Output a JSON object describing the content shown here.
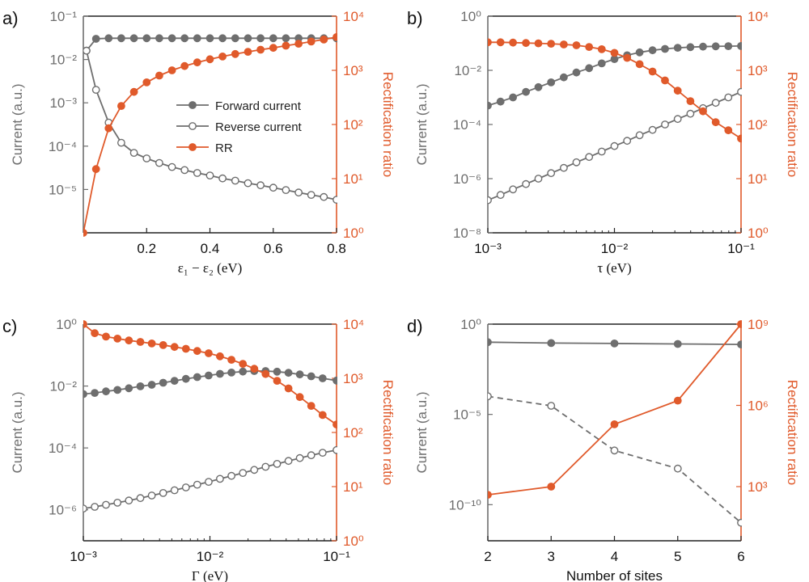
{
  "colors": {
    "gray": "#6e6e6e",
    "orange": "#e05a2b",
    "axis": "#333333"
  },
  "chart_data": [
    {
      "panel": "a)",
      "type": "line",
      "xlabel": "ε₁ − ε₂ (eV)",
      "ylabel_left": "Current (a.u.)",
      "ylabel_right": "Rectification ratio",
      "xlim": [
        0.0,
        0.8
      ],
      "x_scale": "linear",
      "ylim_left_log10": [
        -6,
        -1
      ],
      "ylim_right_log10": [
        0,
        4
      ],
      "xticks": [
        {
          "v": 0.2,
          "label": "0.2"
        },
        {
          "v": 0.4,
          "label": "0.4"
        },
        {
          "v": 0.6,
          "label": "0.6"
        },
        {
          "v": 0.8,
          "label": "0.8"
        }
      ],
      "yticks_left": [
        {
          "e": -5,
          "label": "10⁻⁵"
        },
        {
          "e": -4,
          "label": "10⁻⁴"
        },
        {
          "e": -3,
          "label": "10⁻³"
        },
        {
          "e": -2,
          "label": "10⁻²"
        },
        {
          "e": -1,
          "label": "10⁻¹"
        }
      ],
      "yticks_right": [
        {
          "e": 0,
          "label": "10⁰"
        },
        {
          "e": 1,
          "label": "10¹"
        },
        {
          "e": 2,
          "label": "10²"
        },
        {
          "e": 3,
          "label": "10³"
        },
        {
          "e": 4,
          "label": "10⁴"
        }
      ],
      "legend": {
        "position": "center-right",
        "entries": [
          {
            "label": "Forward current",
            "style": "filled",
            "color": "gray"
          },
          {
            "label": "Reverse current",
            "style": "open",
            "color": "gray"
          },
          {
            "label": "RR",
            "style": "filled",
            "color": "orange"
          }
        ]
      },
      "series": [
        {
          "name": "Forward current",
          "axis": "left",
          "marker": "filled",
          "color": "gray",
          "line": "solid",
          "x": [
            0.01,
            0.04,
            0.08,
            0.12,
            0.16,
            0.2,
            0.24,
            0.28,
            0.32,
            0.36,
            0.4,
            0.44,
            0.48,
            0.52,
            0.56,
            0.6,
            0.64,
            0.68,
            0.72,
            0.76,
            0.8
          ],
          "y": [
            0.016,
            0.03,
            0.031,
            0.031,
            0.031,
            0.031,
            0.031,
            0.031,
            0.031,
            0.031,
            0.031,
            0.031,
            0.031,
            0.031,
            0.031,
            0.031,
            0.031,
            0.031,
            0.031,
            0.031,
            0.031
          ]
        },
        {
          "name": "Reverse current",
          "axis": "left",
          "marker": "open",
          "color": "gray",
          "line": "solid",
          "x": [
            0.01,
            0.04,
            0.08,
            0.12,
            0.16,
            0.2,
            0.24,
            0.28,
            0.32,
            0.36,
            0.4,
            0.44,
            0.48,
            0.52,
            0.56,
            0.6,
            0.64,
            0.68,
            0.72,
            0.76,
            0.8
          ],
          "y": [
            0.016,
            0.002,
            0.00035,
            0.00012,
            7e-05,
            5.2e-05,
            4.1e-05,
            3.3e-05,
            2.8e-05,
            2.4e-05,
            2.1e-05,
            1.8e-05,
            1.6e-05,
            1.4e-05,
            1.25e-05,
            1.1e-05,
            9.7e-06,
            8.5e-06,
            7.5e-06,
            6.7e-06,
            5.8e-06
          ]
        },
        {
          "name": "RR",
          "axis": "right",
          "marker": "filled",
          "color": "orange",
          "line": "solid",
          "x": [
            0.0,
            0.04,
            0.08,
            0.12,
            0.16,
            0.2,
            0.24,
            0.28,
            0.32,
            0.36,
            0.4,
            0.44,
            0.48,
            0.52,
            0.56,
            0.6,
            0.64,
            0.68,
            0.72,
            0.76,
            0.8
          ],
          "y": [
            1,
            15,
            85,
            220,
            400,
            600,
            800,
            1000,
            1200,
            1400,
            1600,
            1800,
            2000,
            2200,
            2400,
            2600,
            2850,
            3100,
            3400,
            3700,
            4100
          ]
        }
      ]
    },
    {
      "panel": "b)",
      "type": "line",
      "xlabel": "τ (eV)",
      "ylabel_left": "Current (a.u.)",
      "ylabel_right": "Rectification ratio",
      "x_scale": "log",
      "xlim_log10": [
        -3,
        -1
      ],
      "ylim_left_log10": [
        -8,
        0
      ],
      "ylim_right_log10": [
        0,
        4
      ],
      "xticks": [
        {
          "e": -3,
          "label": "10⁻³"
        },
        {
          "e": -2,
          "label": "10⁻²"
        },
        {
          "e": -1,
          "label": "10⁻¹"
        }
      ],
      "yticks_left": [
        {
          "e": -8,
          "label": "10⁻⁸"
        },
        {
          "e": -6,
          "label": "10⁻⁶"
        },
        {
          "e": -4,
          "label": "10⁻⁴"
        },
        {
          "e": -2,
          "label": "10⁻²"
        },
        {
          "e": 0,
          "label": "10⁰"
        }
      ],
      "yticks_right": [
        {
          "e": 0,
          "label": "10⁰"
        },
        {
          "e": 1,
          "label": "10¹"
        },
        {
          "e": 2,
          "label": "10²"
        },
        {
          "e": 3,
          "label": "10³"
        },
        {
          "e": 4,
          "label": "10⁴"
        }
      ],
      "series": [
        {
          "name": "Forward current",
          "axis": "left",
          "marker": "filled",
          "color": "gray",
          "line": "solid",
          "x": [
            0.001,
            0.00126,
            0.00158,
            0.002,
            0.00251,
            0.00316,
            0.00398,
            0.00501,
            0.00631,
            0.00794,
            0.01,
            0.0126,
            0.0158,
            0.02,
            0.0251,
            0.0316,
            0.0398,
            0.0501,
            0.0631,
            0.0794,
            0.1
          ],
          "y": [
            0.0005,
            0.0007,
            0.001,
            0.0016,
            0.0024,
            0.0036,
            0.0055,
            0.0083,
            0.012,
            0.018,
            0.026,
            0.036,
            0.046,
            0.055,
            0.062,
            0.068,
            0.072,
            0.075,
            0.077,
            0.078,
            0.079
          ]
        },
        {
          "name": "Reverse current",
          "axis": "left",
          "marker": "open",
          "color": "gray",
          "line": "solid",
          "x": [
            0.001,
            0.00126,
            0.00158,
            0.002,
            0.00251,
            0.00316,
            0.00398,
            0.00501,
            0.00631,
            0.00794,
            0.01,
            0.0126,
            0.0158,
            0.02,
            0.0251,
            0.0316,
            0.0398,
            0.0501,
            0.0631,
            0.0794,
            0.1
          ],
          "y": [
            1.6e-07,
            2.5e-07,
            4e-07,
            6.3e-07,
            1e-06,
            1.6e-06,
            2.5e-06,
            4e-06,
            6.3e-06,
            1e-05,
            1.6e-05,
            2.5e-05,
            4e-05,
            6.3e-05,
            0.0001,
            0.00016,
            0.00025,
            0.0004,
            0.00063,
            0.001,
            0.0016
          ]
        },
        {
          "name": "RR",
          "axis": "right",
          "marker": "filled",
          "color": "orange",
          "line": "solid",
          "x": [
            0.001,
            0.00126,
            0.00158,
            0.002,
            0.00251,
            0.00316,
            0.00398,
            0.00501,
            0.00631,
            0.00794,
            0.01,
            0.0126,
            0.0158,
            0.02,
            0.0251,
            0.0316,
            0.0398,
            0.0501,
            0.0631,
            0.0794,
            0.1
          ],
          "y": [
            3300,
            3300,
            3250,
            3200,
            3150,
            3100,
            3000,
            2900,
            2700,
            2450,
            2100,
            1700,
            1300,
            950,
            650,
            420,
            270,
            175,
            110,
            78,
            55
          ]
        }
      ]
    },
    {
      "panel": "c)",
      "type": "line",
      "xlabel": "Γ (eV)",
      "ylabel_left": "Current (a.u.)",
      "ylabel_right": "Rectification ratio",
      "x_scale": "log",
      "xlim_log10": [
        -3,
        -1
      ],
      "ylim_left_log10": [
        -7,
        0
      ],
      "ylim_right_log10": [
        0,
        4
      ],
      "xticks": [
        {
          "e": -3,
          "label": "10⁻³"
        },
        {
          "e": -2,
          "label": "10⁻²"
        },
        {
          "e": -1,
          "label": "10⁻¹"
        }
      ],
      "yticks_left": [
        {
          "e": -6,
          "label": "10⁻⁶"
        },
        {
          "e": -4,
          "label": "10⁻⁴"
        },
        {
          "e": -2,
          "label": "10⁻²"
        },
        {
          "e": 0,
          "label": "10⁰"
        }
      ],
      "yticks_right": [
        {
          "e": 0,
          "label": "10⁰"
        },
        {
          "e": 1,
          "label": "10¹"
        },
        {
          "e": 2,
          "label": "10²"
        },
        {
          "e": 3,
          "label": "10³"
        },
        {
          "e": 4,
          "label": "10⁴"
        }
      ],
      "series": [
        {
          "name": "Forward current",
          "axis": "left",
          "marker": "filled",
          "color": "gray",
          "line": "solid",
          "x": [
            0.001,
            0.00123,
            0.00151,
            0.00186,
            0.00229,
            0.00282,
            0.00347,
            0.00427,
            0.00525,
            0.00646,
            0.00794,
            0.00977,
            0.012,
            0.0148,
            0.0182,
            0.0224,
            0.0275,
            0.0339,
            0.0417,
            0.0513,
            0.0631,
            0.0776,
            0.1
          ],
          "y": [
            0.0055,
            0.006,
            0.0067,
            0.0075,
            0.0085,
            0.0098,
            0.011,
            0.0128,
            0.0148,
            0.017,
            0.0195,
            0.022,
            0.0248,
            0.0272,
            0.0293,
            0.0305,
            0.0305,
            0.0292,
            0.0268,
            0.0238,
            0.0207,
            0.0178,
            0.015
          ]
        },
        {
          "name": "Reverse current",
          "axis": "left",
          "marker": "open",
          "color": "gray",
          "line": "solid",
          "x": [
            0.001,
            0.00123,
            0.00151,
            0.00186,
            0.00229,
            0.00282,
            0.00347,
            0.00427,
            0.00525,
            0.00646,
            0.00794,
            0.00977,
            0.012,
            0.0148,
            0.0182,
            0.0224,
            0.0275,
            0.0339,
            0.0417,
            0.0513,
            0.0631,
            0.0776,
            0.1
          ],
          "y": [
            1.1e-06,
            1.25e-06,
            1.45e-06,
            1.7e-06,
            2e-06,
            2.4e-06,
            2.9e-06,
            3.5e-06,
            4.3e-06,
            5.3e-06,
            6.5e-06,
            8e-06,
            1e-05,
            1.25e-05,
            1.55e-05,
            1.95e-05,
            2.45e-05,
            3.05e-05,
            3.8e-05,
            4.7e-05,
            5.8e-05,
            7e-05,
            8.5e-05
          ]
        },
        {
          "name": "RR",
          "axis": "right",
          "marker": "filled",
          "color": "orange",
          "line": "solid",
          "x": [
            0.001,
            0.00123,
            0.00151,
            0.00186,
            0.00229,
            0.00282,
            0.00347,
            0.00427,
            0.00525,
            0.00646,
            0.00794,
            0.00977,
            0.012,
            0.0148,
            0.0182,
            0.0224,
            0.0275,
            0.0339,
            0.0417,
            0.0513,
            0.0631,
            0.0776,
            0.1
          ],
          "y": [
            10000,
            6800,
            5900,
            5400,
            5000,
            4700,
            4400,
            4100,
            3800,
            3500,
            3200,
            2900,
            2550,
            2200,
            1850,
            1500,
            1200,
            900,
            650,
            450,
            310,
            210,
            140
          ]
        }
      ]
    },
    {
      "panel": "d)",
      "type": "line",
      "xlabel": "Number of sites",
      "ylabel_left": "Current (a.u.)",
      "ylabel_right": "Rectification ratio",
      "x_scale": "linear",
      "xlim": [
        2,
        6
      ],
      "ylim_left_log10": [
        -12,
        0
      ],
      "ylim_right_log10": [
        1,
        9
      ],
      "xticks": [
        {
          "v": 2,
          "label": "2"
        },
        {
          "v": 3,
          "label": "3"
        },
        {
          "v": 4,
          "label": "4"
        },
        {
          "v": 5,
          "label": "5"
        },
        {
          "v": 6,
          "label": "6"
        }
      ],
      "yticks_left": [
        {
          "e": -10,
          "label": "10⁻¹⁰"
        },
        {
          "e": -5,
          "label": "10⁻⁵"
        },
        {
          "e": 0,
          "label": "10⁰"
        }
      ],
      "yticks_right": [
        {
          "e": 3,
          "label": "10³"
        },
        {
          "e": 6,
          "label": "10⁶"
        },
        {
          "e": 9,
          "label": "10⁹"
        }
      ],
      "series": [
        {
          "name": "Forward current",
          "axis": "left",
          "marker": "filled",
          "color": "gray",
          "line": "solid",
          "x": [
            2,
            3,
            4,
            5,
            6
          ],
          "y": [
            0.1,
            0.09,
            0.085,
            0.08,
            0.075
          ]
        },
        {
          "name": "Reverse current",
          "axis": "left",
          "marker": "open",
          "color": "gray",
          "line": "dashed",
          "x": [
            2,
            3,
            4,
            5,
            6
          ],
          "y": [
            0.0001,
            3e-05,
            1e-07,
            1e-08,
            1e-11
          ]
        },
        {
          "name": "RR",
          "axis": "right",
          "marker": "filled",
          "color": "orange",
          "line": "solid",
          "x": [
            2,
            3,
            4,
            5,
            6
          ],
          "y": [
            500,
            1000,
            200000,
            1500000,
            1000000000
          ]
        }
      ]
    }
  ]
}
